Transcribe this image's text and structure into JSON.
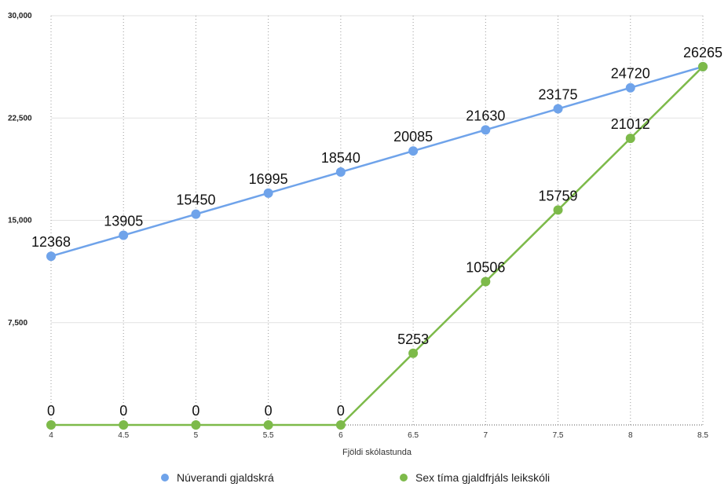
{
  "chart_data": {
    "type": "line",
    "xlabel": "Fjöldi skólastunda",
    "ylabel": "",
    "x": [
      4,
      4.5,
      5,
      5.5,
      6,
      6.5,
      7,
      7.5,
      8,
      8.5
    ],
    "x_tick_labels": [
      "4",
      "4.5",
      "5",
      "5.5",
      "6",
      "6.5",
      "7",
      "7.5",
      "8",
      "8.5"
    ],
    "ylim": [
      0,
      30000
    ],
    "y_ticks": [
      7500,
      15000,
      22500,
      30000
    ],
    "y_tick_labels": [
      "7,500",
      "15,000",
      "22,500",
      "30,000"
    ],
    "grid": true,
    "legend_position": "bottom",
    "series": [
      {
        "name": "Núverandi gjaldskrá",
        "color": "#6fa3ea",
        "values": [
          12368,
          13905,
          15450,
          16995,
          18540,
          20085,
          21630,
          23175,
          24720,
          26265
        ],
        "labels": [
          "12368",
          "13905",
          "15450",
          "16995",
          "18540",
          "20085",
          "21630",
          "23175",
          "24720",
          "26265"
        ]
      },
      {
        "name": "Sex tíma gjaldfrjáls leikskóli",
        "color": "#7dba4a",
        "values": [
          0,
          0,
          0,
          0,
          0,
          5253,
          10506,
          15759,
          21012,
          26265
        ],
        "labels": [
          "0",
          "0",
          "0",
          "0",
          "0",
          "5253",
          "10506",
          "15759",
          "21012",
          ""
        ]
      }
    ]
  }
}
